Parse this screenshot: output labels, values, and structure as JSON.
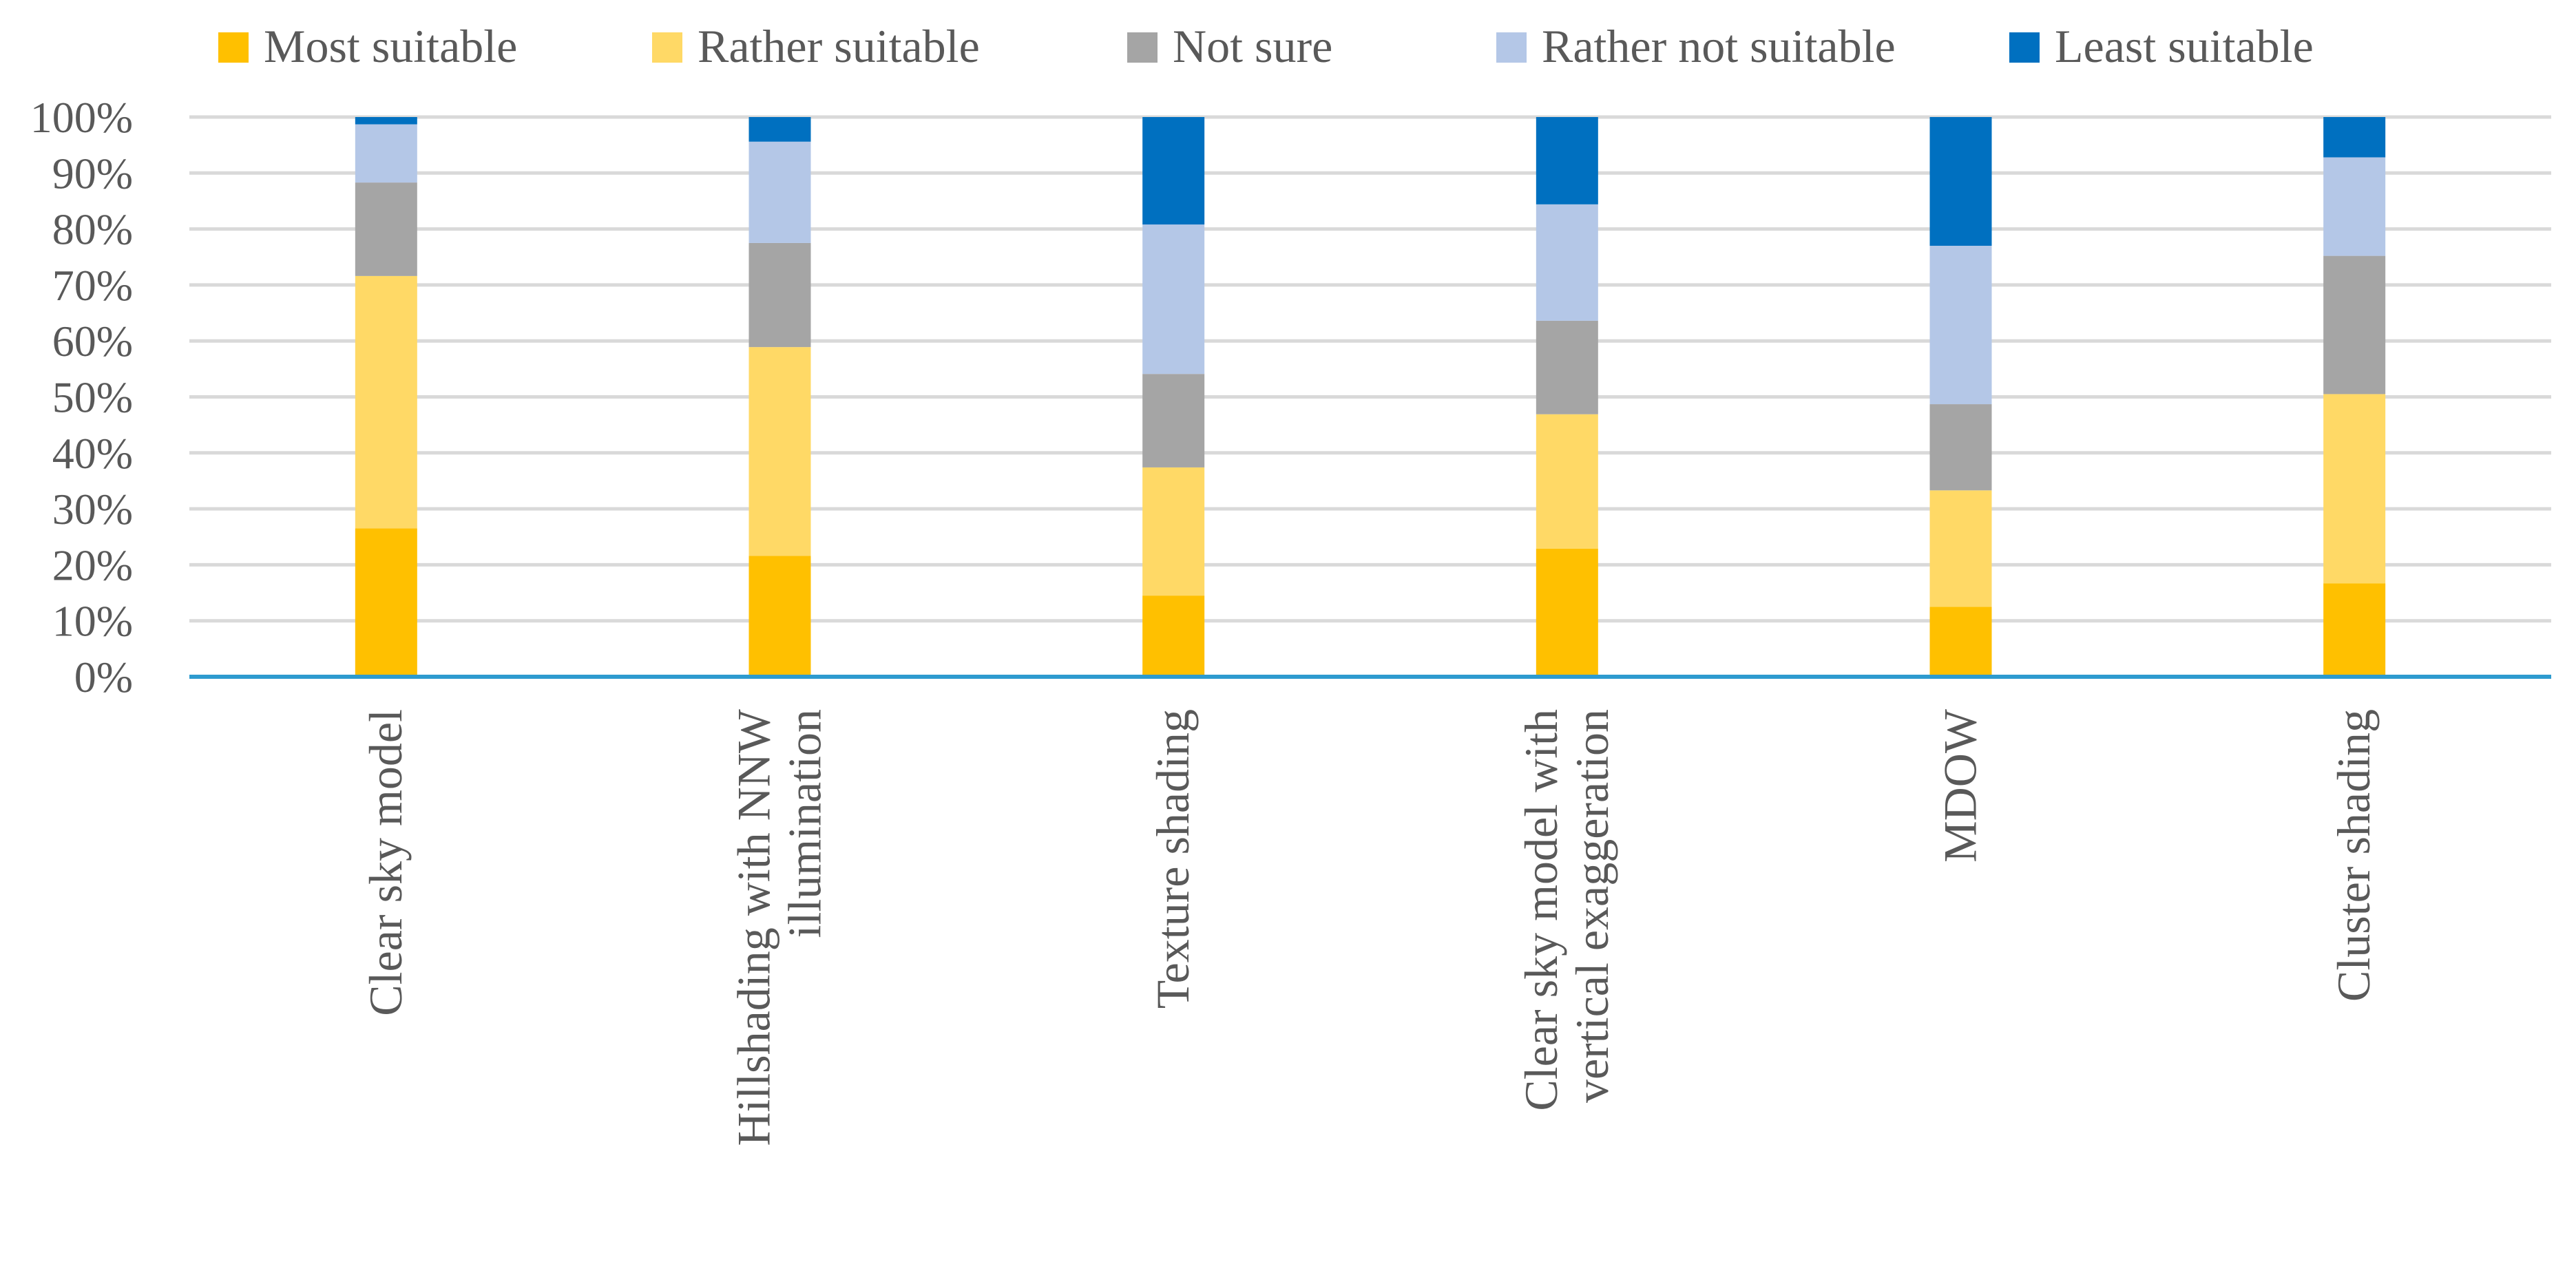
{
  "chart_data": {
    "type": "bar",
    "stacked": true,
    "title": "",
    "xlabel": "",
    "ylabel": "",
    "ylim": [
      0,
      100
    ],
    "grid": true,
    "legend_position": "top",
    "categories": [
      [
        "Clear sky model"
      ],
      [
        "Hillshading with NNW",
        "illumination"
      ],
      [
        "Texture shading"
      ],
      [
        "Clear sky model with",
        "vertical exaggeration"
      ],
      [
        "MDOW"
      ],
      [
        "Cluster shading"
      ]
    ],
    "y_ticks": [
      "0%",
      "10%",
      "20%",
      "30%",
      "40%",
      "50%",
      "60%",
      "70%",
      "80%",
      "90%",
      "100%"
    ],
    "series": [
      {
        "name": "Most suitable",
        "color": "#FFC000",
        "values": [
          26.5,
          21.6,
          14.5,
          22.9,
          12.5,
          16.7
        ]
      },
      {
        "name": "Rather suitable",
        "color": "#FFD966",
        "values": [
          45.1,
          37.3,
          22.9,
          24.0,
          20.8,
          33.8
        ]
      },
      {
        "name": "Not sure",
        "color": "#A5A5A5",
        "values": [
          16.7,
          18.6,
          16.7,
          16.7,
          15.4,
          24.7
        ]
      },
      {
        "name": "Rather not suitable",
        "color": "#B4C7E7",
        "values": [
          10.4,
          18.1,
          26.7,
          20.8,
          28.3,
          17.6
        ]
      },
      {
        "name": "Least suitable",
        "color": "#0070C0",
        "values": [
          1.3,
          4.4,
          19.2,
          15.6,
          23.0,
          7.2
        ]
      }
    ]
  }
}
